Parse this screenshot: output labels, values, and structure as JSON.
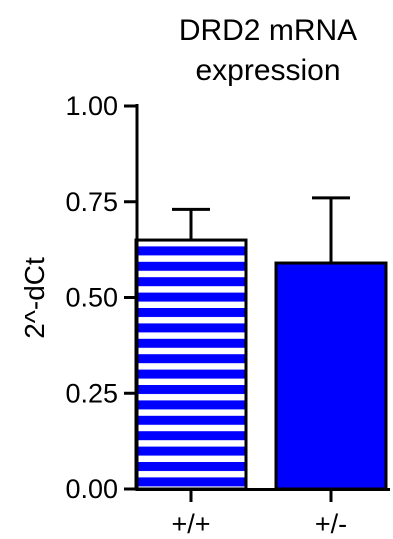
{
  "chart_data": {
    "type": "bar",
    "title_lines": [
      "DRD2 mRNA",
      "expression"
    ],
    "ylabel": "2^-dCt",
    "xlabel": "",
    "categories": [
      "+/+",
      "+/-"
    ],
    "values": [
      0.65,
      0.59
    ],
    "errors": [
      0.08,
      0.17
    ],
    "ylim": [
      0,
      1.0
    ],
    "yticks": [
      0.0,
      0.25,
      0.5,
      0.75,
      1.0
    ],
    "ytick_labels": [
      "0.00",
      "0.25",
      "0.50",
      "0.75",
      "1.00"
    ],
    "bar_styles": [
      "striped",
      "solid"
    ],
    "colors": {
      "bar": "#0000ff",
      "stripe_bg": "#ffffff",
      "axis": "#000000"
    },
    "grid": false,
    "legend": "none"
  }
}
